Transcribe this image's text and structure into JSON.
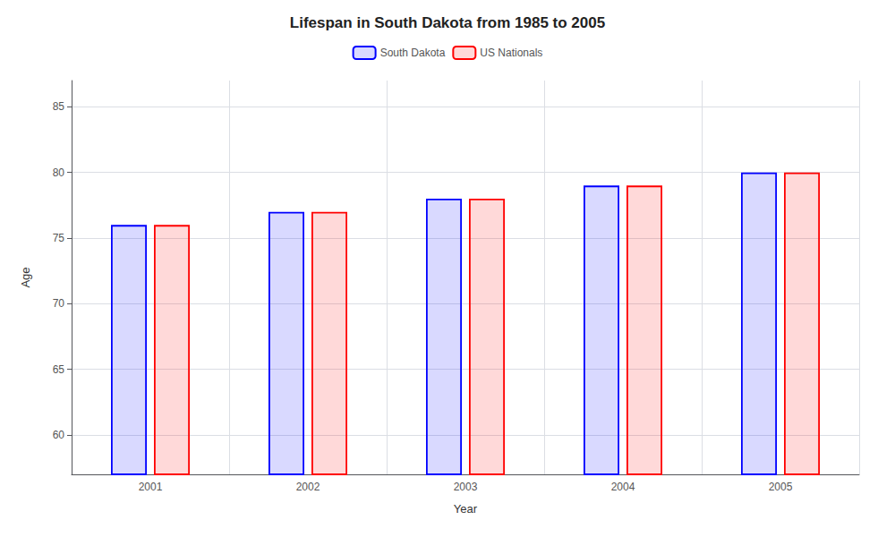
{
  "chart_data": {
    "type": "bar",
    "title": "Lifespan in South Dakota from 1985 to 2005",
    "x_label": "Year",
    "y_label": "Age",
    "categories": [
      "2001",
      "2002",
      "2003",
      "2004",
      "2005"
    ],
    "series": [
      {
        "name": "South Dakota",
        "color": "#0000ff",
        "values": [
          76,
          77,
          78,
          79,
          80
        ]
      },
      {
        "name": "US Nationals",
        "color": "#ff0000",
        "values": [
          76,
          77,
          78,
          79,
          80
        ]
      }
    ],
    "ylim": [
      57,
      87
    ],
    "yticks": [
      60,
      65,
      70,
      75,
      80,
      85
    ],
    "grid": true,
    "legend": "top"
  }
}
